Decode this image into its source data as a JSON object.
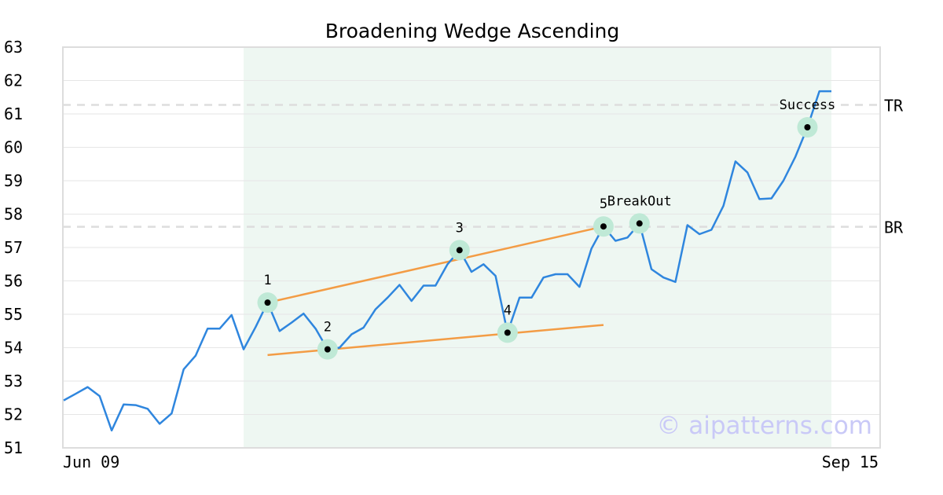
{
  "chart_data": {
    "type": "line",
    "title": "Broadening Wedge Ascending",
    "xlabel": "",
    "ylabel": "",
    "ylim": [
      51,
      63
    ],
    "y_ticks": [
      "51",
      "52",
      "53",
      "54",
      "55",
      "56",
      "57",
      "58",
      "59",
      "60",
      "61",
      "62",
      "63"
    ],
    "x_tick_labels": [
      "Jun 09",
      "Sep 15"
    ],
    "grid": true,
    "colors": {
      "price": "#2f86de",
      "trendline": "#f39c45",
      "marker_halo": "#bfe9d6",
      "pattern_zone": "#eef7f2",
      "guide_line": "#dddddd",
      "frame": "#dddddd"
    },
    "series": [
      {
        "values": [
          52.42,
          52.62,
          52.82,
          52.55,
          51.52,
          52.3,
          52.28,
          52.17,
          51.72,
          52.03,
          53.35,
          53.76,
          54.57,
          54.57,
          54.98,
          53.95,
          54.62,
          55.35,
          54.5,
          54.75,
          55.02,
          54.57,
          53.95,
          54.0,
          54.4,
          54.6,
          55.15,
          55.5,
          55.88,
          55.4,
          55.86,
          55.86,
          56.5,
          56.92,
          56.27,
          56.5,
          56.15,
          54.45,
          55.5,
          55.5,
          56.1,
          56.2,
          56.2,
          55.82,
          56.97,
          57.63,
          57.2,
          57.3,
          57.72,
          56.35,
          56.1,
          55.97,
          57.67,
          57.4,
          57.53,
          58.25,
          59.58,
          59.25,
          58.45,
          58.47,
          59.0,
          59.72,
          60.6,
          61.68,
          61.68
        ]
      }
    ],
    "pattern_zone": {
      "start_index": 15,
      "end_index": 64
    },
    "points": [
      {
        "label": "1",
        "index": 17,
        "value": 55.35
      },
      {
        "label": "2",
        "index": 22,
        "value": 53.95
      },
      {
        "label": "3",
        "index": 33,
        "value": 56.92
      },
      {
        "label": "4",
        "index": 37,
        "value": 54.45
      },
      {
        "label": "5",
        "index": 45,
        "value": 57.63
      },
      {
        "label": "BreakOut",
        "index": 48,
        "value": 57.72
      },
      {
        "label": "Success",
        "index": 62,
        "value": 60.6
      }
    ],
    "trendlines": [
      {
        "from": {
          "index": 17,
          "value": 55.35
        },
        "to": {
          "index": 45,
          "value": 57.63
        }
      },
      {
        "from": {
          "index": 17,
          "value": 53.78
        },
        "to": {
          "index": 45,
          "value": 54.68
        }
      }
    ],
    "levels": [
      {
        "label": "TR",
        "value": 61.27
      },
      {
        "label": "BR",
        "value": 57.62
      }
    ]
  },
  "watermark": "© aipatterns.com"
}
